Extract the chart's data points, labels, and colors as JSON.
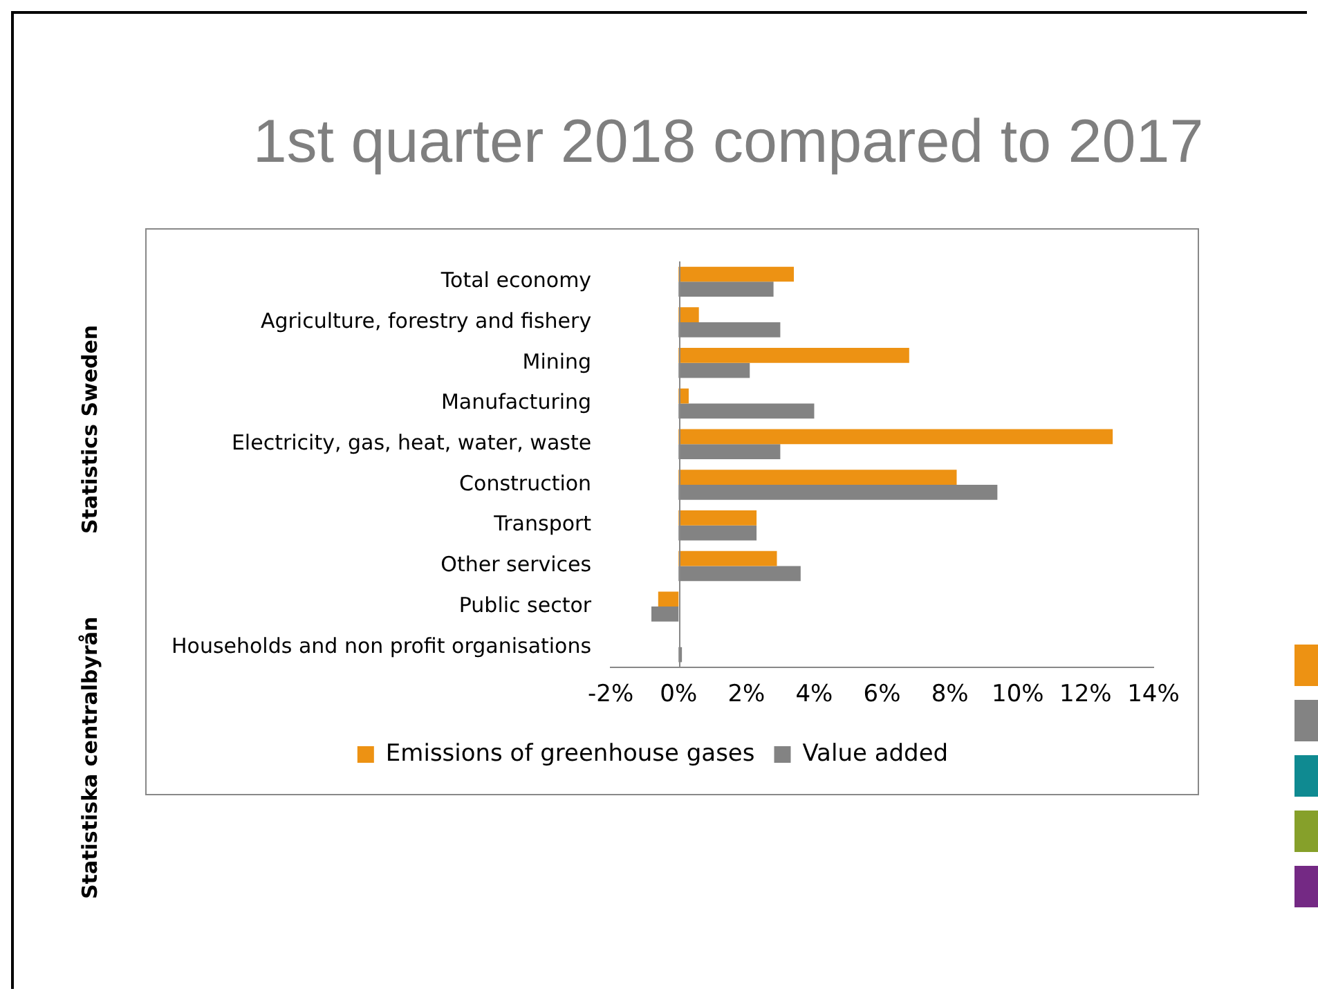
{
  "chart_data": {
    "type": "bar",
    "orientation": "horizontal",
    "title": "1st quarter 2018 compared to 2017",
    "annotations": [
      "Statistics Sweden",
      "Statistiska centralbyrån"
    ],
    "categories": [
      "Total economy",
      "Agriculture, forestry and fishery",
      "Mining",
      "Manufacturing",
      "Electricity, gas, heat, water, waste",
      "Construction",
      "Transport",
      "Other services",
      "Public sector",
      "Households and non profit organisations"
    ],
    "series": [
      {
        "name": "Emissions of greenhouse gases",
        "color": "#ed9213",
        "values": [
          3.4,
          0.6,
          6.8,
          0.3,
          12.8,
          8.2,
          2.3,
          2.9,
          -0.6,
          0
        ]
      },
      {
        "name": "Value added",
        "color": "#838383",
        "values": [
          2.8,
          3.0,
          2.1,
          4.0,
          3.0,
          9.4,
          2.3,
          3.6,
          -0.8,
          0.1
        ]
      }
    ],
    "xlim": [
      -2,
      14
    ],
    "xticks": [
      {
        "value": -2,
        "label": "-2%"
      },
      {
        "value": 0,
        "label": "0%"
      },
      {
        "value": 2,
        "label": "2%"
      },
      {
        "value": 4,
        "label": "4%"
      },
      {
        "value": 6,
        "label": "6%"
      },
      {
        "value": 8,
        "label": "8%"
      },
      {
        "value": 10,
        "label": "10%"
      },
      {
        "value": 12,
        "label": "12%"
      },
      {
        "value": 14,
        "label": "14%"
      }
    ],
    "ref_lines": [
      {
        "axis": "x",
        "value": 0,
        "color": "#888888"
      }
    ],
    "grid": false,
    "legend": "bottom"
  }
}
